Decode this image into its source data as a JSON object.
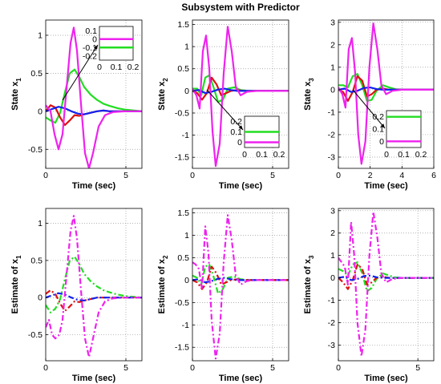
{
  "figure": {
    "title": "Subsystem with Predictor"
  },
  "colors": {
    "green": "#22dd22",
    "red": "#dd1111",
    "blue": "#1122ee",
    "magenta": "#ee22ee",
    "grid": "#999999",
    "axis": "#000000"
  },
  "chart_data": [
    {
      "type": "line",
      "panel": "top-left",
      "title": "",
      "xlabel": "Time (sec)",
      "ylabel": "State x",
      "ylabel_sub": "1",
      "xlim": [
        0,
        6
      ],
      "ylim": [
        -0.75,
        1.2
      ],
      "xticks": [
        0,
        5
      ],
      "yticks": [
        -0.5,
        0,
        0.5,
        1
      ],
      "line_style": "solid",
      "grid": true,
      "series": [
        {
          "color": "green",
          "x": [
            0,
            0.3,
            0.6,
            0.9,
            1.2,
            1.5,
            1.8,
            2.1,
            2.4,
            2.8,
            3.2,
            3.6,
            4.0,
            4.5,
            5.0,
            5.5,
            6.0
          ],
          "y": [
            -0.08,
            -0.12,
            -0.15,
            -0.02,
            0.25,
            0.5,
            0.55,
            0.45,
            0.32,
            0.22,
            0.15,
            0.1,
            0.07,
            0.04,
            0.02,
            0.01,
            0.0
          ]
        },
        {
          "color": "red",
          "x": [
            0,
            0.3,
            0.6,
            0.9,
            1.2,
            1.5,
            1.8,
            2.1,
            2.4,
            2.8,
            3.2,
            3.6,
            4.0,
            5.0,
            6.0
          ],
          "y": [
            0.0,
            0.08,
            0.05,
            -0.08,
            -0.18,
            -0.12,
            -0.05,
            -0.06,
            -0.04,
            -0.02,
            0.0,
            0.01,
            0.0,
            0.0,
            0.0
          ]
        },
        {
          "color": "blue",
          "x": [
            0,
            0.4,
            0.8,
            1.2,
            1.6,
            2.0,
            2.4,
            2.8,
            3.2,
            3.6,
            4.0,
            5.0,
            6.0
          ],
          "y": [
            0.0,
            0.03,
            0.06,
            0.04,
            0.0,
            -0.03,
            -0.04,
            -0.02,
            0.0,
            0.01,
            0.0,
            0.0,
            0.0
          ]
        },
        {
          "color": "magenta",
          "x": [
            0,
            0.3,
            0.55,
            0.8,
            1.05,
            1.3,
            1.55,
            1.75,
            1.95,
            2.2,
            2.45,
            2.7,
            2.95,
            3.3,
            3.7,
            4.2,
            5.0,
            6.0
          ],
          "y": [
            0.08,
            0.0,
            -0.3,
            -0.5,
            -0.3,
            0.3,
            0.9,
            1.1,
            0.8,
            0.1,
            -0.55,
            -0.75,
            -0.55,
            -0.2,
            -0.05,
            -0.01,
            0.0,
            0.0
          ]
        }
      ],
      "inset": {
        "xticks": [
          "0",
          "0.1",
          "0.2"
        ],
        "yticks": [
          "0.1",
          "0",
          "-0.1",
          "-0.2"
        ],
        "entries": [
          {
            "color": "magenta",
            "value": 0
          },
          {
            "color": "green",
            "value": -0.1
          }
        ]
      }
    },
    {
      "type": "line",
      "panel": "top-middle",
      "title": "",
      "xlabel": "Time (sec)",
      "ylabel": "State x",
      "ylabel_sub": "2",
      "xlim": [
        0,
        6
      ],
      "ylim": [
        -1.75,
        1.6
      ],
      "xticks": [
        0,
        5
      ],
      "yticks": [
        -1.5,
        -1,
        -0.5,
        0,
        0.5,
        1,
        1.5
      ],
      "line_style": "solid",
      "grid": true,
      "series": [
        {
          "color": "green",
          "x": [
            0,
            0.3,
            0.55,
            0.8,
            1.05,
            1.3,
            1.6,
            1.9,
            2.2,
            2.6,
            3.0,
            3.5,
            4.0,
            5.0,
            6.0
          ],
          "y": [
            0.05,
            0.05,
            -0.1,
            0.3,
            0.35,
            0.1,
            -0.25,
            -0.2,
            0.05,
            0.08,
            0.02,
            0.0,
            0.0,
            0.0,
            0.0
          ]
        },
        {
          "color": "red",
          "x": [
            0,
            0.3,
            0.6,
            0.9,
            1.2,
            1.5,
            1.8,
            2.1,
            2.4,
            2.8,
            3.2,
            4.0,
            5.0,
            6.0
          ],
          "y": [
            0.0,
            -0.05,
            -0.2,
            -0.05,
            0.3,
            0.15,
            -0.1,
            -0.05,
            0.0,
            0.02,
            0.0,
            0.0,
            0.0,
            0.0
          ]
        },
        {
          "color": "blue",
          "x": [
            0,
            0.4,
            0.8,
            1.2,
            1.6,
            2.0,
            2.4,
            2.8,
            3.2,
            4.0,
            5.0,
            6.0
          ],
          "y": [
            0.0,
            0.02,
            -0.05,
            -0.02,
            0.03,
            0.05,
            0.02,
            0.0,
            0.0,
            0.0,
            0.0,
            0.0
          ]
        },
        {
          "color": "magenta",
          "x": [
            0,
            0.25,
            0.45,
            0.65,
            0.85,
            1.05,
            1.25,
            1.45,
            1.7,
            1.95,
            2.2,
            2.45,
            2.7,
            3.0,
            3.4,
            4.0,
            5.0,
            6.0
          ],
          "y": [
            0.05,
            -0.1,
            -0.4,
            0.9,
            1.25,
            0.5,
            -0.9,
            -1.7,
            -1.2,
            0.4,
            1.45,
            0.9,
            0.1,
            -0.1,
            -0.02,
            0.0,
            0.0,
            0.0
          ]
        }
      ],
      "inset": {
        "xticks": [
          "0",
          "0.1",
          "0.2"
        ],
        "yticks": [
          "0.2",
          "0.1",
          "0"
        ],
        "entries": [
          {
            "color": "green",
            "value": 0.1
          },
          {
            "color": "magenta",
            "value": 0
          }
        ]
      }
    },
    {
      "type": "line",
      "panel": "top-right",
      "title": "",
      "xlabel": "Time (sec)",
      "ylabel": "State x",
      "ylabel_sub": "3",
      "xlim": [
        0,
        6
      ],
      "ylim": [
        -3.5,
        3.1
      ],
      "xticks": [
        0,
        2,
        4,
        6
      ],
      "yticks": [
        -3,
        -2,
        -1,
        0,
        1,
        2,
        3
      ],
      "line_style": "solid",
      "grid": true,
      "series": [
        {
          "color": "green",
          "x": [
            0,
            0.3,
            0.6,
            0.9,
            1.2,
            1.5,
            1.8,
            2.1,
            2.4,
            2.8,
            3.2,
            3.6,
            4.0,
            5.0,
            6.0
          ],
          "y": [
            0.2,
            0.2,
            0.1,
            0.6,
            0.7,
            0.2,
            -0.5,
            -0.45,
            -0.05,
            0.2,
            0.1,
            0.02,
            0.0,
            0.0,
            0.0
          ]
        },
        {
          "color": "red",
          "x": [
            0,
            0.3,
            0.6,
            0.9,
            1.2,
            1.5,
            1.8,
            2.1,
            2.4,
            2.8,
            3.2,
            4.0,
            5.0,
            6.0
          ],
          "y": [
            0.0,
            -0.1,
            -0.5,
            -0.1,
            0.6,
            0.4,
            -0.3,
            -0.2,
            0.0,
            0.05,
            0.0,
            0.0,
            0.0,
            0.0
          ]
        },
        {
          "color": "blue",
          "x": [
            0,
            0.4,
            0.8,
            1.2,
            1.6,
            2.0,
            2.4,
            2.8,
            3.2,
            4.0,
            5.0,
            6.0
          ],
          "y": [
            0.0,
            0.05,
            -0.1,
            -0.05,
            0.08,
            0.1,
            0.03,
            0.0,
            0.0,
            0.0,
            0.0,
            0.0
          ]
        },
        {
          "color": "magenta",
          "x": [
            0,
            0.25,
            0.45,
            0.65,
            0.85,
            1.05,
            1.25,
            1.45,
            1.7,
            1.95,
            2.2,
            2.45,
            2.7,
            3.0,
            3.4,
            4.0,
            5.0,
            6.0
          ],
          "y": [
            0.1,
            -0.2,
            -0.8,
            1.8,
            2.3,
            0.8,
            -2.0,
            -3.3,
            -2.3,
            1.0,
            2.95,
            1.8,
            0.2,
            -0.2,
            -0.05,
            0.0,
            0.0,
            0.0
          ]
        }
      ],
      "inset": {
        "xticks": [
          "0",
          "0.1",
          "0.2"
        ],
        "yticks": [
          "0.2",
          "0.1",
          "0"
        ],
        "entries": [
          {
            "color": "green",
            "value": 0.2
          },
          {
            "color": "magenta",
            "value": 0
          }
        ]
      }
    },
    {
      "type": "line",
      "panel": "bottom-left",
      "title": "",
      "xlabel": "Time (sec)",
      "ylabel": "Estimate of x",
      "ylabel_sub": "1",
      "xlim": [
        0,
        6
      ],
      "ylim": [
        -0.85,
        1.2
      ],
      "xticks": [
        0,
        5
      ],
      "yticks": [
        -0.5,
        0,
        0.5,
        1
      ],
      "line_style": "dashdot",
      "grid": true,
      "series": [
        {
          "color": "green",
          "x": [
            0,
            0.3,
            0.6,
            0.9,
            1.2,
            1.5,
            1.8,
            2.1,
            2.4,
            2.8,
            3.2,
            3.6,
            4.0,
            4.5,
            5.0,
            5.5,
            6.0
          ],
          "y": [
            -0.1,
            -0.2,
            -0.15,
            -0.02,
            0.25,
            0.5,
            0.55,
            0.45,
            0.32,
            0.22,
            0.15,
            0.1,
            0.07,
            0.04,
            0.02,
            0.01,
            0.0
          ]
        },
        {
          "color": "red",
          "x": [
            0,
            0.3,
            0.6,
            0.9,
            1.2,
            1.5,
            1.8,
            2.1,
            2.4,
            2.8,
            3.2,
            4.0,
            5.0,
            6.0
          ],
          "y": [
            0.05,
            0.1,
            0.05,
            -0.08,
            -0.18,
            -0.12,
            -0.05,
            -0.06,
            -0.04,
            -0.02,
            0.0,
            0.0,
            0.0,
            0.0
          ]
        },
        {
          "color": "blue",
          "x": [
            0,
            0.4,
            0.8,
            1.2,
            1.6,
            2.0,
            2.4,
            2.8,
            3.2,
            4.0,
            5.0,
            6.0
          ],
          "y": [
            0.0,
            0.03,
            0.06,
            0.04,
            0.0,
            -0.03,
            -0.04,
            -0.02,
            0.0,
            0.0,
            0.0,
            0.0
          ]
        },
        {
          "color": "magenta",
          "x": [
            0,
            0.2,
            0.4,
            0.6,
            0.85,
            1.05,
            1.3,
            1.55,
            1.75,
            1.95,
            2.2,
            2.45,
            2.7,
            2.95,
            3.3,
            3.7,
            4.2,
            5.0,
            6.0
          ],
          "y": [
            -0.4,
            -0.3,
            -0.5,
            -0.55,
            -0.5,
            -0.3,
            0.3,
            0.9,
            1.1,
            0.8,
            0.1,
            -0.55,
            -0.8,
            -0.55,
            -0.2,
            -0.05,
            -0.01,
            0.0,
            0.0
          ]
        }
      ]
    },
    {
      "type": "line",
      "panel": "bottom-middle",
      "title": "",
      "xlabel": "Time (sec)",
      "ylabel": "Estimate of x",
      "ylabel_sub": "2",
      "xlim": [
        0,
        6
      ],
      "ylim": [
        -1.8,
        1.6
      ],
      "xticks": [
        0,
        5
      ],
      "yticks": [
        -1.5,
        -1,
        -0.5,
        0,
        0.5,
        1,
        1.5
      ],
      "line_style": "dashdot",
      "grid": true,
      "series": [
        {
          "color": "green",
          "x": [
            0,
            0.3,
            0.55,
            0.8,
            1.05,
            1.3,
            1.6,
            1.9,
            2.2,
            2.6,
            3.0,
            3.5,
            4.0,
            5.0,
            6.0
          ],
          "y": [
            0.1,
            0.05,
            -0.1,
            0.3,
            0.35,
            0.1,
            -0.3,
            -0.2,
            0.05,
            0.08,
            0.02,
            0.0,
            0.0,
            0.0,
            0.0
          ]
        },
        {
          "color": "red",
          "x": [
            0,
            0.3,
            0.6,
            0.9,
            1.2,
            1.5,
            1.8,
            2.1,
            2.4,
            2.8,
            3.2,
            4.0,
            5.0,
            6.0
          ],
          "y": [
            0.0,
            -0.05,
            -0.2,
            -0.05,
            0.3,
            0.15,
            -0.1,
            -0.05,
            0.0,
            0.02,
            0.0,
            0.0,
            0.0,
            0.0
          ]
        },
        {
          "color": "blue",
          "x": [
            0,
            0.4,
            0.8,
            1.2,
            1.6,
            2.0,
            2.4,
            2.8,
            3.2,
            4.0,
            5.0,
            6.0
          ],
          "y": [
            0.0,
            0.02,
            -0.05,
            -0.02,
            0.03,
            0.05,
            0.02,
            0.0,
            0.0,
            0.0,
            0.0,
            0.0
          ]
        },
        {
          "color": "magenta",
          "x": [
            0,
            0.2,
            0.4,
            0.6,
            0.8,
            1.0,
            1.2,
            1.45,
            1.7,
            1.95,
            2.2,
            2.45,
            2.7,
            3.0,
            3.4,
            4.0,
            5.0,
            6.0
          ],
          "y": [
            0.4,
            0.35,
            0.25,
            -0.2,
            1.2,
            0.6,
            -0.9,
            -1.75,
            -1.2,
            0.4,
            1.45,
            0.9,
            0.1,
            -0.1,
            -0.02,
            0.0,
            0.0,
            0.0
          ]
        }
      ]
    },
    {
      "type": "line",
      "panel": "bottom-right",
      "title": "",
      "xlabel": "Time (sec)",
      "ylabel": "Estimate of x",
      "ylabel_sub": "3",
      "xlim": [
        0,
        6
      ],
      "ylim": [
        -3.7,
        3.1
      ],
      "xticks": [
        0,
        5
      ],
      "yticks": [
        -3,
        -2,
        -1,
        0,
        1,
        2,
        3
      ],
      "line_style": "dashdot",
      "grid": true,
      "series": [
        {
          "color": "green",
          "x": [
            0,
            0.3,
            0.6,
            0.9,
            1.2,
            1.5,
            1.8,
            2.1,
            2.4,
            2.8,
            3.2,
            3.6,
            4.0,
            5.0,
            6.0
          ],
          "y": [
            0.4,
            0.3,
            0.1,
            0.6,
            0.7,
            0.2,
            -0.6,
            -0.45,
            -0.05,
            0.2,
            0.1,
            0.02,
            0.0,
            0.0,
            0.0
          ]
        },
        {
          "color": "red",
          "x": [
            0,
            0.3,
            0.6,
            0.9,
            1.2,
            1.5,
            1.8,
            2.1,
            2.4,
            2.8,
            3.2,
            4.0,
            5.0,
            6.0
          ],
          "y": [
            0.0,
            -0.2,
            -0.5,
            -0.1,
            0.6,
            0.4,
            -0.3,
            -0.2,
            0.0,
            0.05,
            0.0,
            0.0,
            0.0,
            0.0
          ]
        },
        {
          "color": "blue",
          "x": [
            0,
            0.4,
            0.8,
            1.2,
            1.6,
            2.0,
            2.4,
            2.8,
            3.2,
            4.0,
            5.0,
            6.0
          ],
          "y": [
            0.0,
            0.05,
            -0.1,
            -0.05,
            0.08,
            0.1,
            0.03,
            0.0,
            0.0,
            0.0,
            0.0,
            0.0
          ]
        },
        {
          "color": "magenta",
          "x": [
            0,
            0.2,
            0.4,
            0.6,
            0.8,
            1.0,
            1.2,
            1.45,
            1.7,
            1.95,
            2.2,
            2.45,
            2.7,
            3.0,
            3.4,
            4.0,
            5.0,
            6.0
          ],
          "y": [
            0.9,
            0.7,
            0.5,
            -0.3,
            2.5,
            1.0,
            -2.0,
            -3.5,
            -2.3,
            1.0,
            2.95,
            1.8,
            0.2,
            -0.2,
            -0.05,
            0.0,
            0.0,
            0.0
          ]
        }
      ]
    }
  ]
}
